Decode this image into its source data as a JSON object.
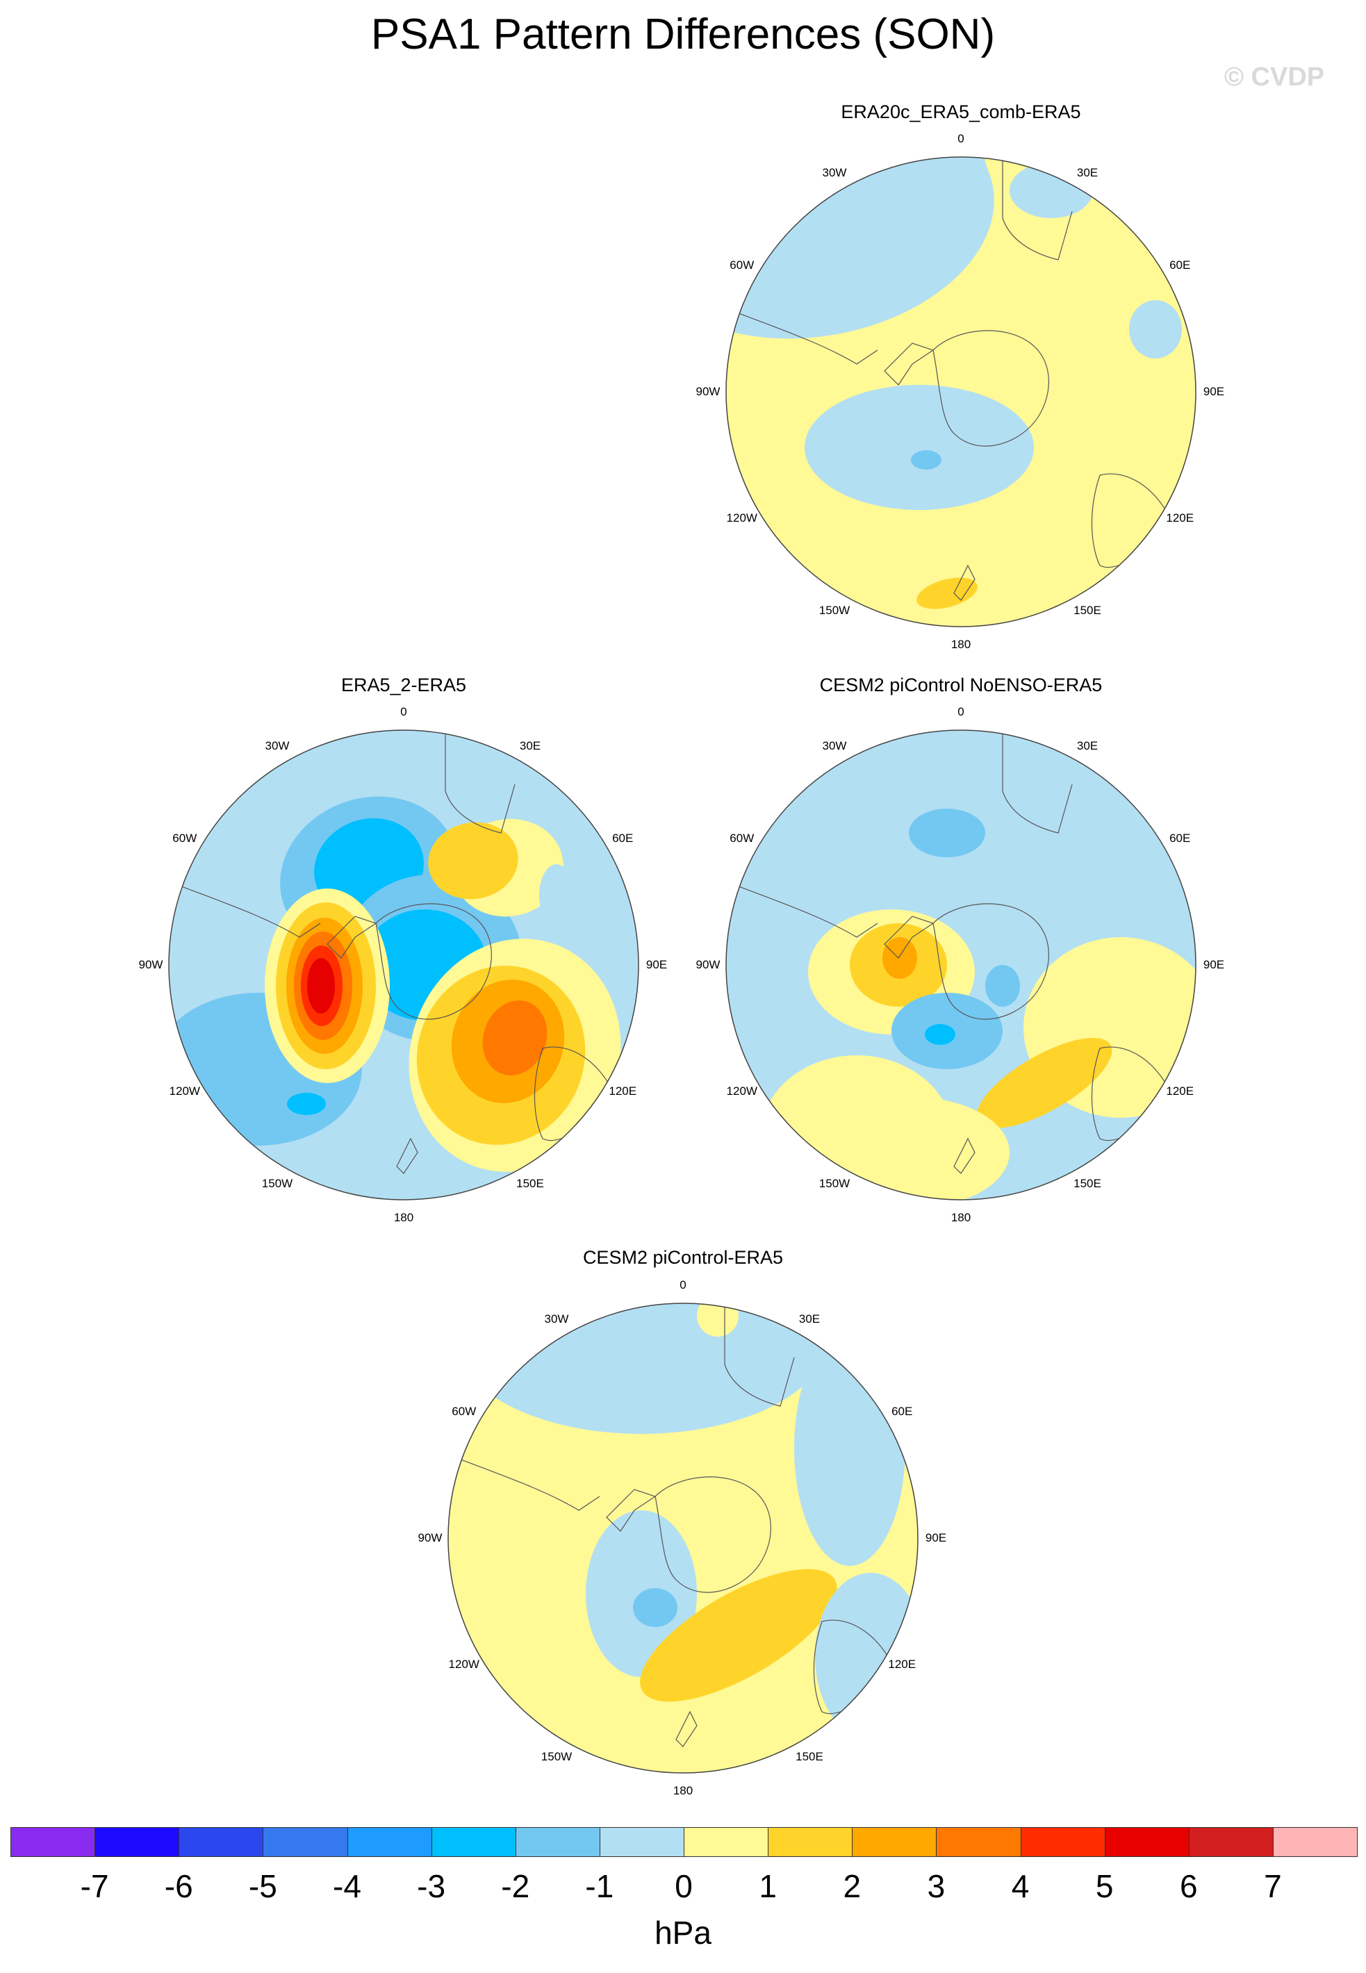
{
  "title": "PSA1 Pattern Differences (SON)",
  "copyright": "© CVDP",
  "units": "hPa",
  "lon_labels": [
    "0",
    "30E",
    "60E",
    "90E",
    "120E",
    "150E",
    "180",
    "150W",
    "120W",
    "90W",
    "60W",
    "30W"
  ],
  "colors": {
    "land_outline": "#555555",
    "map_border": "#444444"
  },
  "colorbar": {
    "colors": [
      "#8a2bf0",
      "#1e0bff",
      "#2a48ee",
      "#3579ee",
      "#1e9bff",
      "#00bfff",
      "#73c8f2",
      "#b3dff3",
      "#fff996",
      "#ffd42a",
      "#ffa800",
      "#ff7800",
      "#ff2d00",
      "#e60000",
      "#d21e1e",
      "#ffb5b5"
    ],
    "labels": [
      "-7",
      "-6",
      "-5",
      "-4",
      "-3",
      "-2",
      "-1",
      "0",
      "1",
      "2",
      "3",
      "4",
      "5",
      "6",
      "7"
    ]
  },
  "panels": [
    {
      "title": "ERA20c_ERA5_comb-ERA5",
      "background_level": "0 to 1",
      "features": [
        "negative (-1 to 0) over Weddell/South Atlantic sector",
        "negative (-1 to 0) over Antarctic Peninsula / Bellingshausen",
        "negative (-2 to -1) small center west of Peninsula",
        "positive (1 to 2) small center south of New Zealand"
      ]
    },
    {
      "title": "ERA5_2-ERA5",
      "background_level": "-1 to 0",
      "features": [
        "positive peak (5 to 6) over southeast Pacific west of Peninsula",
        "negative (-3 to -2) over Antarctica and South Atlantic",
        "positive (3 to 4) south of Australia",
        "negative (-3 to -2) small center in central Pacific"
      ]
    },
    {
      "title": "CESM2 piControl NoENSO-ERA5",
      "background_level": "-1 to 0",
      "features": [
        "positive (2 to 3) near Antarctic Peninsula",
        "negative (-3 to -2) in Amundsen/Ross sector",
        "positive (1 to 2) south of Australia",
        "positive (0 to 1) over Indian Ocean sector"
      ]
    },
    {
      "title": "CESM2 piControl-ERA5",
      "background_level": "0 to 1",
      "features": [
        "negative (-1 to 0) over South Atlantic and Indian Ocean rim",
        "negative (-2 to -1) small center west of Peninsula",
        "positive (1 to 2) south of Australia / Ross Sea"
      ]
    }
  ]
}
